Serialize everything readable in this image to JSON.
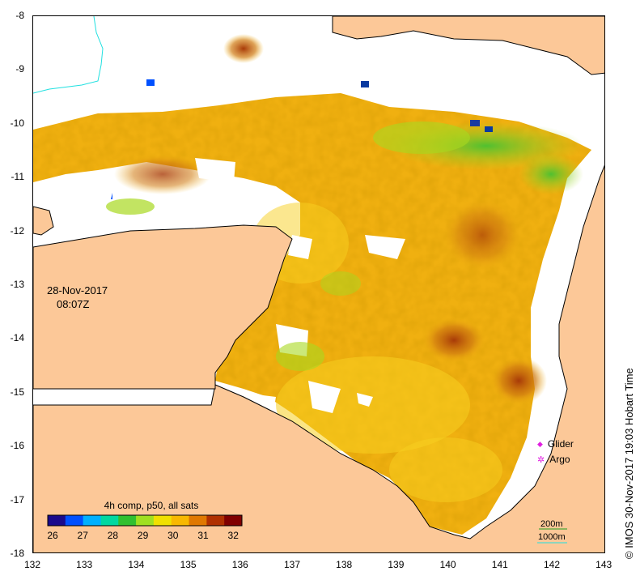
{
  "map": {
    "date": "28-Nov-2017",
    "time": "08:07Z",
    "lat_labels": [
      "-8",
      "-9",
      "-10",
      "-11",
      "-12",
      "-13",
      "-14",
      "-15",
      "-16",
      "-17",
      "-18"
    ],
    "lon_labels": [
      "132",
      "133",
      "134",
      "135",
      "136",
      "137",
      "138",
      "139",
      "140",
      "141",
      "142",
      "143"
    ],
    "colorbar": {
      "title": "4h comp, p50, all sats",
      "ticks": [
        "26",
        "27",
        "28",
        "29",
        "30",
        "31",
        "32"
      ],
      "colors": [
        "#1a0a8c",
        "#0050ff",
        "#00b0ff",
        "#00d8a0",
        "#30c030",
        "#a0e020",
        "#f0e000",
        "#f8b800",
        "#e07800",
        "#b03000",
        "#800000"
      ]
    },
    "legend": {
      "glider_label": "Glider",
      "argo_label": "Argo",
      "marker_color": "#e020e0"
    },
    "depth": {
      "d200": "200m",
      "d1000": "1000m",
      "color_200": "#20a020",
      "color_1000": "#20e0e0"
    },
    "credit": "© IMOS 30-Nov-2017 19:03 Hobart Time",
    "colors": {
      "land": "#fcc898",
      "cloud": "#ffffff",
      "sst_warm": "#f0b010",
      "sst_hot": "#c86410",
      "sst_cool": "#a8d820",
      "sst_green": "#30b830",
      "sst_blue": "#0a3aa0"
    }
  }
}
